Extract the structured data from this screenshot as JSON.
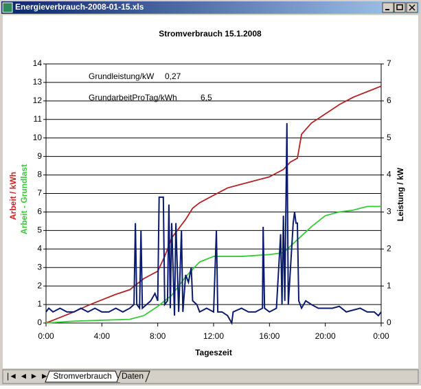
{
  "window": {
    "title": "Energieverbrauch-2008-01-15.xls"
  },
  "tabs": [
    "Stromverbrauch",
    "Daten"
  ],
  "chart_data": {
    "type": "line",
    "title": "Stromverbrauch 15.1.2008",
    "x_label": "Tageszeit",
    "y_labels": [
      {
        "text": "Arbeit / kWh",
        "color": "#cc2222"
      },
      {
        "text": "Arbeit - Grundlast",
        "color": "#33cc33"
      }
    ],
    "y2_label": "Leistung / kW",
    "annotations": [
      "Grundleistung/kW",
      "0,27",
      "GrundarbeitProTag/kWh",
      "6,5"
    ],
    "xlim": [
      0,
      24
    ],
    "xticks": [
      {
        "value": 0,
        "label": "0:00"
      },
      {
        "value": 4,
        "label": "4:00"
      },
      {
        "value": 8,
        "label": "8:00"
      },
      {
        "value": 12,
        "label": "12:00"
      },
      {
        "value": 16,
        "label": "16:00"
      },
      {
        "value": 20,
        "label": "20:00"
      },
      {
        "value": 24,
        "label": "0:00"
      }
    ],
    "ylim": [
      0,
      14
    ],
    "yticks": [
      0,
      1,
      2,
      3,
      4,
      5,
      6,
      7,
      8,
      9,
      10,
      11,
      12,
      13,
      14
    ],
    "y2lim": [
      0,
      7
    ],
    "y2ticks": [
      0,
      1,
      2,
      3,
      4,
      5,
      6,
      7
    ],
    "grid": true,
    "series": [
      {
        "color": "#b22222",
        "axis": "y",
        "x": [
          0,
          1,
          2,
          3,
          4,
          5,
          6,
          6.5,
          7,
          7.5,
          8,
          8.5,
          9,
          9.5,
          10,
          10.5,
          11,
          11.5,
          12,
          12.5,
          13,
          14,
          15,
          16,
          16.5,
          17,
          17.5,
          18,
          18.3,
          19,
          20,
          21,
          22,
          23,
          24
        ],
        "values": [
          0,
          0.3,
          0.6,
          0.95,
          1.25,
          1.55,
          1.8,
          2.1,
          2.4,
          2.6,
          2.8,
          3.6,
          4.6,
          5.1,
          5.6,
          6.2,
          6.5,
          6.7,
          6.9,
          7.1,
          7.3,
          7.5,
          7.7,
          7.9,
          8.1,
          8.3,
          8.7,
          8.9,
          10.2,
          10.8,
          11.3,
          11.8,
          12.2,
          12.5,
          12.8
        ]
      },
      {
        "color": "#33cc33",
        "axis": "y",
        "x": [
          0,
          1,
          2,
          4,
          6,
          7,
          8,
          9,
          10,
          11,
          12,
          13,
          14,
          16,
          17,
          18,
          19,
          20,
          21,
          22,
          23,
          24
        ],
        "values": [
          0,
          0.05,
          0.1,
          0.15,
          0.2,
          0.4,
          0.9,
          1.5,
          2.5,
          3.3,
          3.6,
          3.6,
          3.6,
          3.7,
          3.8,
          4.5,
          5.2,
          5.8,
          6.0,
          6.1,
          6.3,
          6.3
        ]
      },
      {
        "color": "#0a1a6e",
        "axis": "y2",
        "x": [
          0,
          0.2,
          0.5,
          1,
          1.5,
          2,
          2.5,
          3,
          3.5,
          4,
          4.5,
          5,
          5.5,
          6,
          6.3,
          6.4,
          6.5,
          6.7,
          6.8,
          6.9,
          7.2,
          7.5,
          7.8,
          8.0,
          8.1,
          8.4,
          8.5,
          8.7,
          8.8,
          8.9,
          9.0,
          9.2,
          9.3,
          9.5,
          9.7,
          9.8,
          10.0,
          10.2,
          10.4,
          10.5,
          10.8,
          11,
          11.5,
          12,
          12.2,
          12.3,
          12.6,
          13,
          13.3,
          13.4,
          14,
          14.5,
          15,
          15.5,
          15.55,
          15.65,
          16,
          16.5,
          16.8,
          16.9,
          17.0,
          17.1,
          17.25,
          17.35,
          17.7,
          17.8,
          17.9,
          18.0,
          18.1,
          18.3,
          18.6,
          19,
          19.5,
          20,
          20.5,
          21,
          21.5,
          22,
          22.5,
          23,
          23.5,
          23.8,
          24
        ],
        "values": [
          0.3,
          0.4,
          0.3,
          0.4,
          0.3,
          0.3,
          0.4,
          0.3,
          0.4,
          0.3,
          0.3,
          0.4,
          0.3,
          0.4,
          0.5,
          2.7,
          0.5,
          0.4,
          2.5,
          0.4,
          0.5,
          0.6,
          0.8,
          0.6,
          3.4,
          3.4,
          0.5,
          0.6,
          3.2,
          0.4,
          2.7,
          0.2,
          2.7,
          0.3,
          2.5,
          0.3,
          1.3,
          1.1,
          1.5,
          0.6,
          0.5,
          0.3,
          0.4,
          0.3,
          2.5,
          0.3,
          0.3,
          0.2,
          0.0,
          0.3,
          0.4,
          0.3,
          0.3,
          0.4,
          2.6,
          0.4,
          0.3,
          0.4,
          2.4,
          0.5,
          2.9,
          0.6,
          5.4,
          0.5,
          2.7,
          3.0,
          2.7,
          2.7,
          0.6,
          0.4,
          0.6,
          0.5,
          0.4,
          0.4,
          0.4,
          0.45,
          0.3,
          0.35,
          0.4,
          0.3,
          0.3,
          0.2,
          0.3
        ]
      }
    ]
  }
}
